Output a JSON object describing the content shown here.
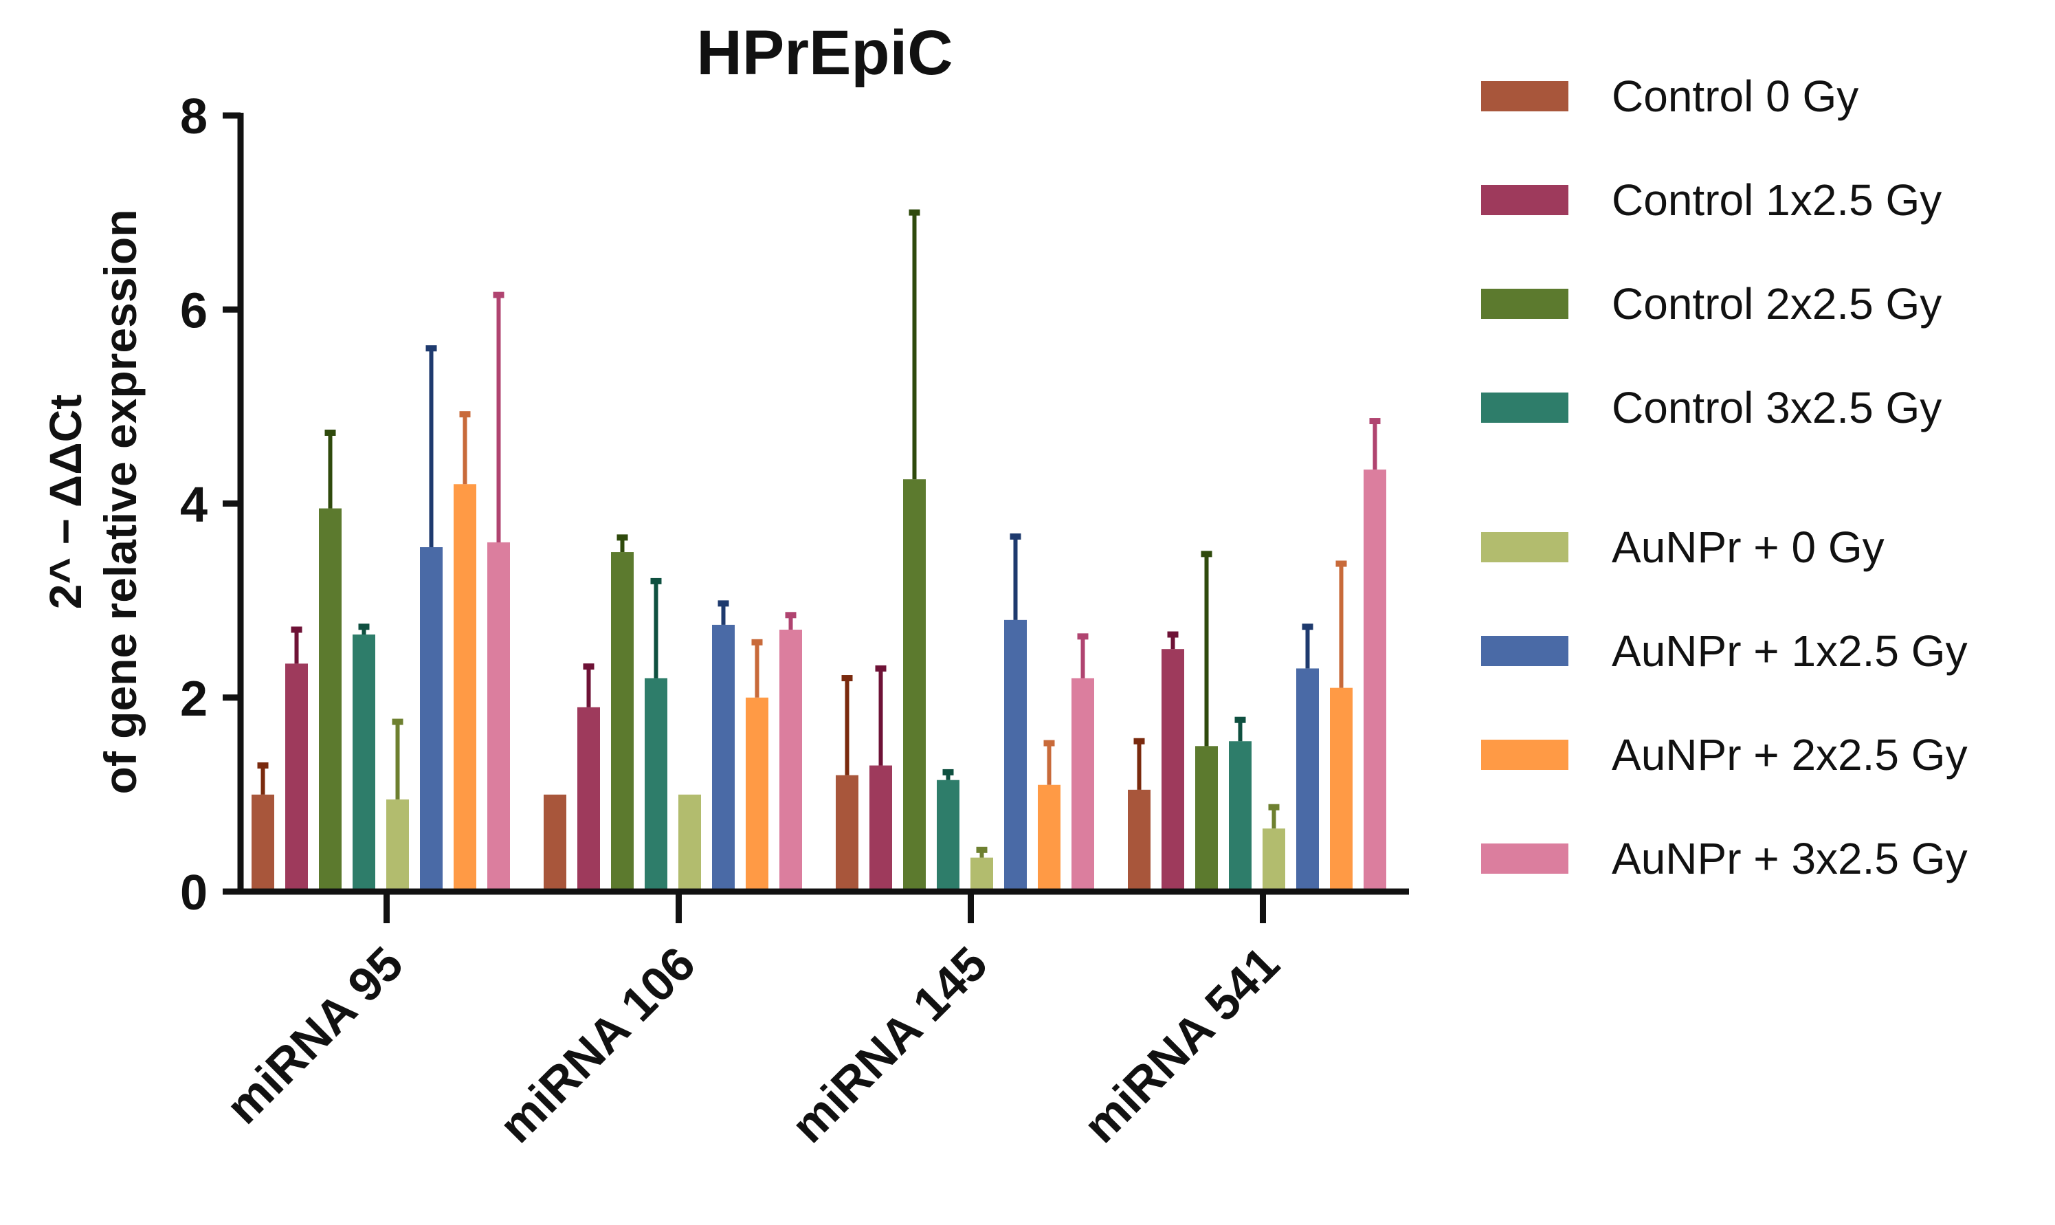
{
  "chart_data": {
    "type": "bar",
    "title": "HPrEpiC",
    "ylabel_line1": "2^ − ΔΔCt",
    "ylabel_line2": "of gene relative expression",
    "ylim": [
      0,
      8
    ],
    "yticks": [
      0,
      2,
      4,
      6,
      8
    ],
    "categories": [
      "miRNA 95",
      "miRNA 106",
      "miRNA 145",
      "miRNA 541"
    ],
    "legend_position": "right",
    "series": [
      {
        "name": "Control 0 Gy",
        "color": "#A8563B",
        "error_color": "#7A2A0E",
        "values": [
          1.0,
          1.0,
          1.2,
          1.05
        ],
        "errors": [
          0.3,
          0.0,
          1.0,
          0.5
        ]
      },
      {
        "name": "Control 1x2.5 Gy",
        "color": "#9E3A5C",
        "error_color": "#6E1236",
        "values": [
          2.35,
          1.9,
          1.3,
          2.5
        ],
        "errors": [
          0.35,
          0.42,
          1.0,
          0.15
        ]
      },
      {
        "name": "Control 2x2.5 Gy",
        "color": "#5C7A2E",
        "error_color": "#2F4A0C",
        "values": [
          3.95,
          3.5,
          4.25,
          1.5
        ],
        "errors": [
          0.78,
          0.15,
          2.75,
          1.98
        ]
      },
      {
        "name": "Control 3x2.5 Gy",
        "color": "#2E7D6A",
        "error_color": "#0F5040",
        "values": [
          2.65,
          2.2,
          1.15,
          1.55
        ],
        "errors": [
          0.08,
          1.0,
          0.08,
          0.22
        ]
      },
      {
        "name": "AuNPr + 0 Gy",
        "color": "#B2BC6E",
        "error_color": "#6E8030",
        "values": [
          0.95,
          1.0,
          0.35,
          0.65
        ],
        "errors": [
          0.8,
          0.0,
          0.08,
          0.22
        ]
      },
      {
        "name": "AuNPr + 1x2.5 Gy",
        "color": "#4A6AA6",
        "error_color": "#1E3A6E",
        "values": [
          3.55,
          2.75,
          2.8,
          2.3
        ],
        "errors": [
          2.05,
          0.22,
          0.86,
          0.43
        ]
      },
      {
        "name": "AuNPr + 2x2.5 Gy",
        "color": "#FF9A45",
        "error_color": "#C86A3A",
        "values": [
          4.2,
          2.0,
          1.1,
          2.1
        ],
        "errors": [
          0.72,
          0.57,
          0.43,
          1.28
        ]
      },
      {
        "name": "AuNPr + 3x2.5 Gy",
        "color": "#DB7E9E",
        "error_color": "#B04470",
        "values": [
          3.6,
          2.7,
          2.2,
          4.35
        ],
        "errors": [
          2.55,
          0.15,
          0.43,
          0.5
        ]
      }
    ]
  }
}
